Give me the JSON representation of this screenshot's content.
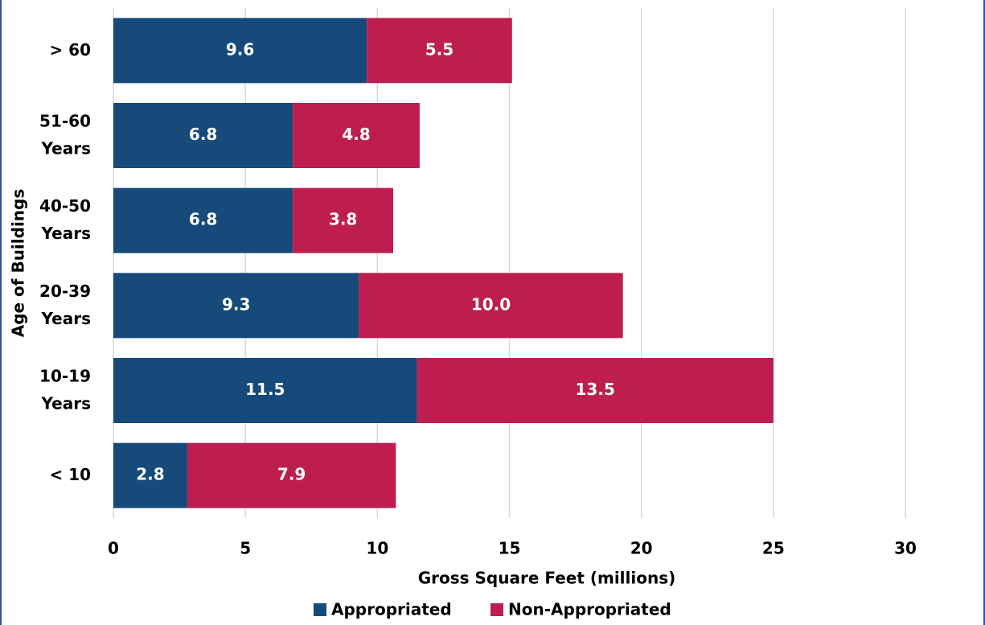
{
  "chart_data": {
    "type": "stacked_bar_horizontal",
    "x_label": "Gross Square Feet (millions)",
    "y_label": "Age of Buildings",
    "categories": [
      "> 60",
      "51-60\nYears",
      "40-50\nYears",
      "20-39\nYears",
      "10-19\nYears",
      "< 10"
    ],
    "series": [
      {
        "name": "Appropriated",
        "color": "#154a7a",
        "values": [
          9.6,
          6.8,
          6.8,
          9.3,
          11.5,
          2.8
        ],
        "value_labels": [
          "9.6",
          "6.8",
          "6.8",
          "9.3",
          "11.5",
          "2.8"
        ]
      },
      {
        "name": "Non-Appropriated",
        "color": "#be1e4f",
        "values": [
          5.5,
          4.8,
          3.8,
          10.0,
          13.5,
          7.9
        ],
        "value_labels": [
          "5.5",
          "4.8",
          "3.8",
          "10.0",
          "13.5",
          "7.9"
        ]
      }
    ],
    "xlim": [
      0,
      30
    ],
    "xticks": [
      0,
      5,
      10,
      15,
      20,
      25,
      30
    ],
    "grid": true,
    "legend": "bottom"
  }
}
